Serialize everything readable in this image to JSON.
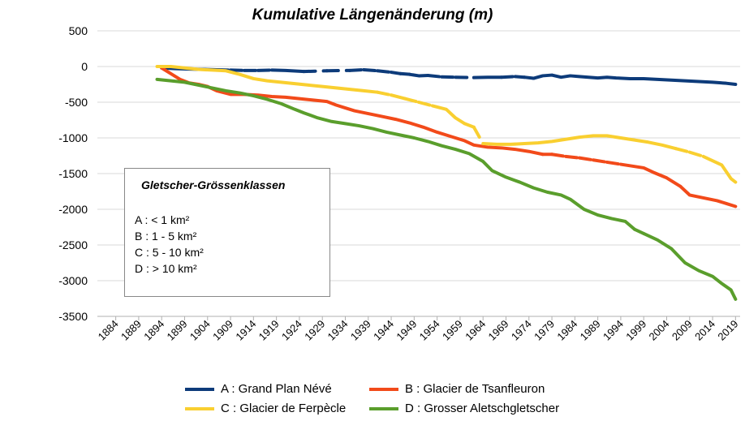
{
  "chart_data": {
    "type": "line",
    "title": "Kumulative Längenänderung (m)",
    "xlabel": "",
    "ylabel": "",
    "xlim": [
      1880,
      2020
    ],
    "ylim": [
      -3500,
      500
    ],
    "y_ticks": [
      500,
      0,
      -500,
      -1000,
      -1500,
      -2000,
      -2500,
      -3000,
      -3500
    ],
    "x_ticks": [
      1884,
      1889,
      1894,
      1899,
      1904,
      1909,
      1914,
      1919,
      1924,
      1929,
      1934,
      1939,
      1944,
      1949,
      1954,
      1959,
      1964,
      1969,
      1974,
      1979,
      1984,
      1989,
      1994,
      1999,
      2004,
      2009,
      2014,
      2019
    ],
    "grid": true,
    "legend_position": "bottom",
    "series": [
      {
        "name": "A : Grand Plan Névé",
        "color": "#0d3b7a",
        "points": [
          [
            1894,
            -20
          ],
          [
            1897,
            -30
          ],
          [
            1900,
            -35
          ],
          [
            1903,
            -40
          ],
          [
            1906,
            -45
          ],
          [
            1909,
            -50
          ],
          [
            1912,
            -55
          ],
          [
            1915,
            -55
          ],
          [
            1918,
            -50
          ],
          [
            1921,
            -55
          ],
          [
            1925,
            -70
          ],
          [
            1930,
            -60
          ],
          [
            1935,
            -55
          ],
          [
            1938,
            -45
          ],
          [
            1941,
            -60
          ],
          [
            1944,
            -80
          ],
          [
            1946,
            -100
          ],
          [
            1948,
            -110
          ],
          [
            1950,
            -130
          ],
          [
            1952,
            -125
          ],
          [
            1955,
            -145
          ],
          [
            1958,
            -150
          ],
          [
            1962,
            -155
          ],
          [
            1965,
            -150
          ],
          [
            1968,
            -150
          ],
          [
            1971,
            -140
          ],
          [
            1973,
            -150
          ],
          [
            1975,
            -165
          ],
          [
            1977,
            -130
          ],
          [
            1979,
            -120
          ],
          [
            1981,
            -150
          ],
          [
            1983,
            -130
          ],
          [
            1985,
            -140
          ],
          [
            1987,
            -150
          ],
          [
            1989,
            -160
          ],
          [
            1991,
            -150
          ],
          [
            1993,
            -160
          ],
          [
            1996,
            -170
          ],
          [
            1999,
            -170
          ],
          [
            2002,
            -180
          ],
          [
            2005,
            -190
          ],
          [
            2008,
            -200
          ],
          [
            2011,
            -210
          ],
          [
            2014,
            -220
          ],
          [
            2017,
            -235
          ],
          [
            2019,
            -250
          ]
        ],
        "gaps": [
          [
            1906,
            1920
          ],
          [
            1925,
            1948
          ],
          [
            1951,
            1964
          ],
          [
            1968,
            1976
          ]
        ]
      },
      {
        "name": "B : Glacier de Tsanfleuron",
        "color": "#f24a1a",
        "points": [
          [
            1894,
            -20
          ],
          [
            1896,
            -100
          ],
          [
            1898,
            -180
          ],
          [
            1900,
            -230
          ],
          [
            1902,
            -250
          ],
          [
            1904,
            -280
          ],
          [
            1906,
            -340
          ],
          [
            1909,
            -390
          ],
          [
            1912,
            -390
          ],
          [
            1915,
            -400
          ],
          [
            1918,
            -420
          ],
          [
            1921,
            -430
          ],
          [
            1924,
            -450
          ],
          [
            1927,
            -470
          ],
          [
            1930,
            -490
          ],
          [
            1932,
            -540
          ],
          [
            1934,
            -580
          ],
          [
            1936,
            -620
          ],
          [
            1939,
            -660
          ],
          [
            1942,
            -700
          ],
          [
            1945,
            -740
          ],
          [
            1948,
            -790
          ],
          [
            1951,
            -850
          ],
          [
            1954,
            -920
          ],
          [
            1957,
            -980
          ],
          [
            1960,
            -1040
          ],
          [
            1962,
            -1100
          ],
          [
            1965,
            -1130
          ],
          [
            1968,
            -1140
          ],
          [
            1971,
            -1160
          ],
          [
            1974,
            -1190
          ],
          [
            1977,
            -1230
          ],
          [
            1979,
            -1230
          ],
          [
            1982,
            -1260
          ],
          [
            1985,
            -1280
          ],
          [
            1988,
            -1310
          ],
          [
            1991,
            -1340
          ],
          [
            1994,
            -1370
          ],
          [
            1997,
            -1400
          ],
          [
            1999,
            -1420
          ],
          [
            2001,
            -1480
          ],
          [
            2004,
            -1560
          ],
          [
            2007,
            -1680
          ],
          [
            2009,
            -1800
          ],
          [
            2012,
            -1840
          ],
          [
            2015,
            -1880
          ],
          [
            2017,
            -1920
          ],
          [
            2019,
            -1960
          ]
        ],
        "gaps": [
          [
            1902,
            1904
          ],
          [
            1977,
            1995
          ],
          [
            2005,
            2009
          ]
        ]
      },
      {
        "name": "C : Glacier de Ferpècle",
        "color": "#f9cf30",
        "points": [
          [
            1893,
            0
          ],
          [
            1896,
            0
          ],
          [
            1899,
            -20
          ],
          [
            1902,
            -40
          ],
          [
            1905,
            -50
          ],
          [
            1908,
            -60
          ],
          [
            1911,
            -110
          ],
          [
            1914,
            -170
          ],
          [
            1917,
            -200
          ],
          [
            1920,
            -220
          ],
          [
            1923,
            -240
          ],
          [
            1926,
            -260
          ],
          [
            1929,
            -280
          ],
          [
            1932,
            -300
          ],
          [
            1935,
            -320
          ],
          [
            1938,
            -340
          ],
          [
            1941,
            -360
          ],
          [
            1944,
            -400
          ],
          [
            1947,
            -450
          ],
          [
            1950,
            -500
          ],
          [
            1953,
            -550
          ],
          [
            1956,
            -600
          ],
          [
            1958,
            -720
          ],
          [
            1960,
            -800
          ],
          [
            1962,
            -850
          ],
          [
            1964,
            -1080
          ],
          [
            1967,
            -1090
          ],
          [
            1970,
            -1090
          ],
          [
            1973,
            -1080
          ],
          [
            1976,
            -1070
          ],
          [
            1979,
            -1050
          ],
          [
            1982,
            -1020
          ],
          [
            1985,
            -990
          ],
          [
            1988,
            -970
          ],
          [
            1991,
            -970
          ],
          [
            1994,
            -1000
          ],
          [
            1997,
            -1030
          ],
          [
            2000,
            -1060
          ],
          [
            2003,
            -1100
          ],
          [
            2006,
            -1150
          ],
          [
            2009,
            -1200
          ],
          [
            2012,
            -1260
          ],
          [
            2014,
            -1320
          ],
          [
            2016,
            -1380
          ],
          [
            2018,
            -1570
          ],
          [
            2019,
            -1620
          ]
        ],
        "gaps": [
          [
            1939,
            1944
          ],
          [
            1945,
            1954
          ],
          [
            1960,
            1965
          ],
          [
            2006,
            2013
          ]
        ]
      },
      {
        "name": "D : Grosser Aletschgletscher",
        "color": "#5a9e2c",
        "points": [
          [
            1893,
            -180
          ],
          [
            1896,
            -200
          ],
          [
            1899,
            -220
          ],
          [
            1902,
            -260
          ],
          [
            1905,
            -300
          ],
          [
            1908,
            -340
          ],
          [
            1911,
            -370
          ],
          [
            1914,
            -410
          ],
          [
            1917,
            -460
          ],
          [
            1920,
            -520
          ],
          [
            1923,
            -600
          ],
          [
            1925,
            -650
          ],
          [
            1928,
            -720
          ],
          [
            1931,
            -770
          ],
          [
            1934,
            -800
          ],
          [
            1937,
            -830
          ],
          [
            1940,
            -870
          ],
          [
            1943,
            -920
          ],
          [
            1946,
            -960
          ],
          [
            1949,
            -1000
          ],
          [
            1952,
            -1050
          ],
          [
            1955,
            -1110
          ],
          [
            1958,
            -1160
          ],
          [
            1961,
            -1220
          ],
          [
            1964,
            -1330
          ],
          [
            1966,
            -1460
          ],
          [
            1969,
            -1550
          ],
          [
            1972,
            -1620
          ],
          [
            1975,
            -1700
          ],
          [
            1978,
            -1760
          ],
          [
            1981,
            -1800
          ],
          [
            1983,
            -1860
          ],
          [
            1986,
            -2000
          ],
          [
            1989,
            -2080
          ],
          [
            1992,
            -2130
          ],
          [
            1995,
            -2170
          ],
          [
            1997,
            -2280
          ],
          [
            1999,
            -2340
          ],
          [
            2002,
            -2430
          ],
          [
            2005,
            -2550
          ],
          [
            2008,
            -2750
          ],
          [
            2011,
            -2860
          ],
          [
            2014,
            -2940
          ],
          [
            2016,
            -3040
          ],
          [
            2018,
            -3130
          ],
          [
            2019,
            -3260
          ]
        ],
        "gaps": [
          [
            1997,
            1999
          ]
        ]
      }
    ]
  },
  "size_classes": {
    "title": "Gletscher-Grössenklassen",
    "lines": [
      "A : < 1 km²",
      "B : 1 - 5 km²",
      "C : 5 - 10 km²",
      "D : > 10 km²"
    ]
  }
}
